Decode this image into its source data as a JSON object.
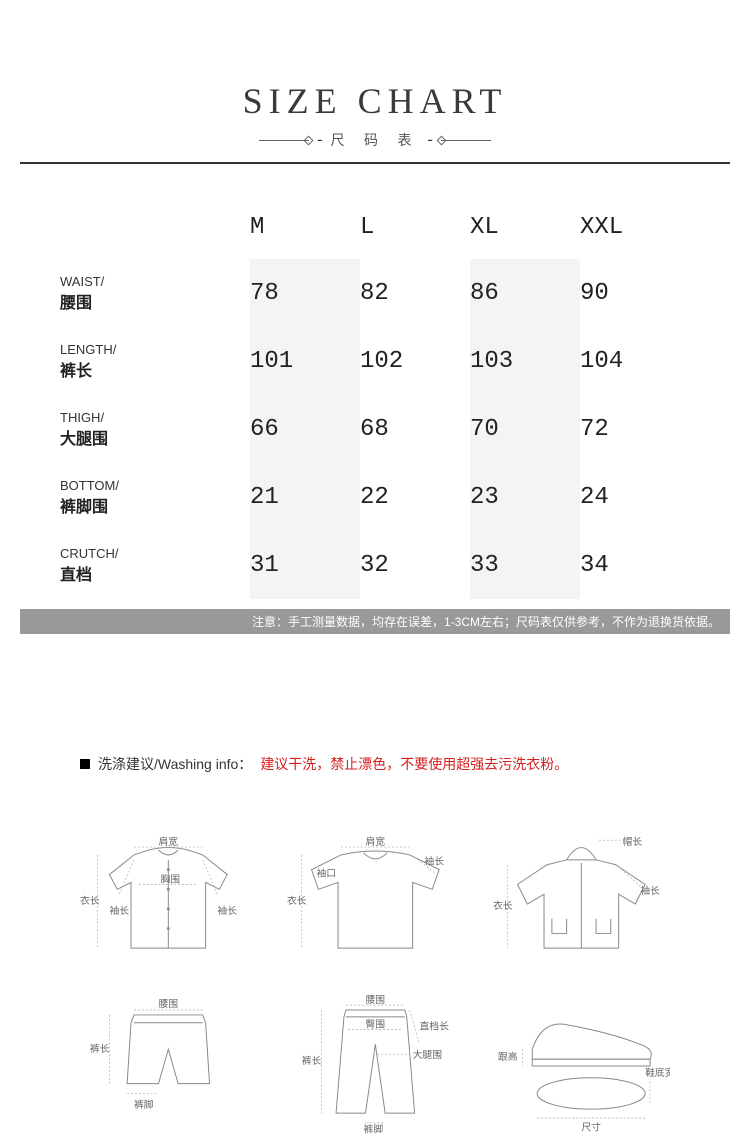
{
  "header": {
    "title": "SIZE CHART",
    "subtitle": "尺 码 表"
  },
  "table": {
    "sizes": [
      "M",
      "L",
      "XL",
      "XXL"
    ],
    "shaded_columns": [
      0,
      2
    ],
    "rows": [
      {
        "en": "WAIST/",
        "cn": "腰围",
        "values": [
          78,
          82,
          86,
          90
        ]
      },
      {
        "en": "LENGTH/",
        "cn": "裤长",
        "values": [
          101,
          102,
          103,
          104
        ]
      },
      {
        "en": "THIGH/",
        "cn": "大腿围",
        "values": [
          66,
          68,
          70,
          72
        ]
      },
      {
        "en": "BOTTOM/",
        "cn": "裤脚围",
        "values": [
          21,
          22,
          23,
          24
        ]
      },
      {
        "en": "CRUTCH/",
        "cn": "直档",
        "values": [
          31,
          32,
          33,
          34
        ]
      }
    ],
    "header_fontsize": 24,
    "value_fontsize": 24,
    "label_en_fontsize": 13,
    "label_cn_fontsize": 16,
    "shade_color": "#f4f4f4",
    "text_color": "#222222"
  },
  "note": "注意：手工测量数据，均存在误差，1-3CM左右；尺码表仅供参考，不作为退换货依据。",
  "note_bar_color": "#999999",
  "washing": {
    "label": "洗涤建议/Washing info：",
    "text": "建议干洗，禁止漂色，不要使用超强去污洗衣粉。",
    "text_color": "#d52020"
  },
  "diagrams": {
    "shirt": {
      "labels": {
        "shoulder": "肩宽",
        "chest": "胸围",
        "length": "衣长",
        "sleeve": "袖长"
      }
    },
    "tshirt": {
      "labels": {
        "shoulder": "肩宽",
        "cuff": "袖口",
        "length": "衣长",
        "sleeve": "袖长"
      }
    },
    "hoodie": {
      "labels": {
        "hood": "帽长",
        "length": "衣长",
        "sleeve": "袖长"
      }
    },
    "shorts": {
      "labels": {
        "waist": "腰围",
        "length": "裤长",
        "hem": "裤脚"
      }
    },
    "pants": {
      "labels": {
        "waist": "腰围",
        "hip": "臀围",
        "rise": "直档长",
        "thigh": "大腿围",
        "length": "裤长",
        "hem": "裤脚"
      }
    },
    "shoe": {
      "labels": {
        "heel": "跟高",
        "length": "尺寸",
        "width": "鞋底宽"
      }
    }
  }
}
